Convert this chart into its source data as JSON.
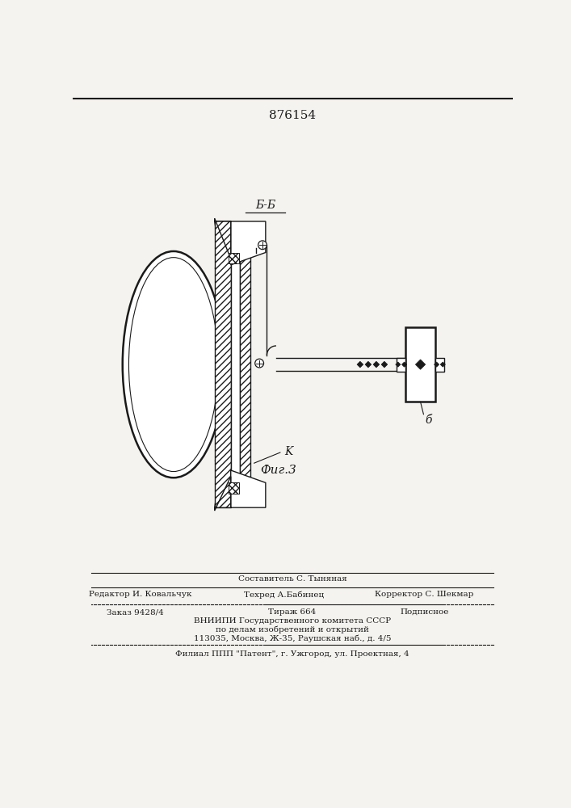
{
  "patent_number": "876154",
  "figure_label": "Фиг.3",
  "section_label": "Б-Б",
  "label_k": "K",
  "label_b": "б",
  "footer_composer": "Составитель С. Тыняная",
  "footer_line1_left": "Редактор И. Ковальчук",
  "footer_line1_center": "Техред А.Бабинец",
  "footer_line1_right": "Корректор С. Шекмар",
  "footer_order": "Заказ 9428/4",
  "footer_tirazh": "Тираж 664",
  "footer_podpisnoe": "Подписное",
  "footer_vniip": "ВНИИПИ Государственного комитета СССР",
  "footer_po_delam": "по делам изобретений и открытий",
  "footer_address": "113035, Москва, Ж-35, Раушская наб., д. 4/5",
  "footer_filial": "Филиал ППП \"Патент\", г. Ужгород, ул. Проектная, 4",
  "bg_color": "#f5f3ef",
  "line_color": "#1a1a1a"
}
